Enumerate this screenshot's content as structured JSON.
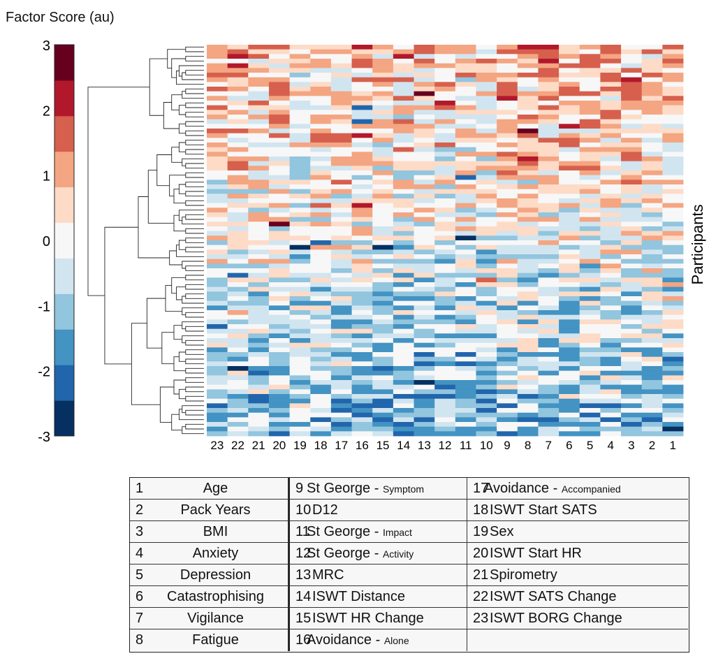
{
  "chart_data": {
    "type": "heatmap",
    "colorbar_title": "Factor Score (au)",
    "colorbar_ticks": [
      "3",
      "2",
      "1",
      "0",
      "-1",
      "-2",
      "-3"
    ],
    "colorbar_range": [
      -3,
      3
    ],
    "colorbar_colors": [
      "#053061",
      "#2166ac",
      "#4393c3",
      "#92c5de",
      "#d1e5f0",
      "#f7f7f7",
      "#fddbc7",
      "#f4a582",
      "#d6604d",
      "#b2182b",
      "#67001f"
    ],
    "ylabel": "Participants",
    "columns": [
      "23",
      "22",
      "21",
      "20",
      "19",
      "18",
      "17",
      "16",
      "15",
      "14",
      "13",
      "12",
      "11",
      "10",
      "9",
      "8",
      "7",
      "6",
      "5",
      "4",
      "3",
      "2",
      "1"
    ],
    "n_rows": 84,
    "row_dendrogram": true
  },
  "legend": {
    "columns": [
      [
        {
          "num": "1",
          "name": "Age",
          "desc": ""
        },
        {
          "num": "2",
          "name": "Pack Years",
          "desc": ""
        },
        {
          "num": "3",
          "name": "BMI",
          "desc": ""
        },
        {
          "num": "4",
          "name": "Anxiety",
          "desc": ""
        },
        {
          "num": "5",
          "name": "Depression",
          "desc": ""
        },
        {
          "num": "6",
          "name": "Catastrophising",
          "desc": ""
        },
        {
          "num": "7",
          "name": "Vigilance",
          "desc": ""
        },
        {
          "num": "8",
          "name": "Fatigue",
          "desc": ""
        }
      ],
      [
        {
          "num": "9",
          "name": "St George - ",
          "desc": "Symptom"
        },
        {
          "num": "10",
          "name": "D12",
          "desc": ""
        },
        {
          "num": "11",
          "name": "St George - ",
          "desc": "Impact"
        },
        {
          "num": "12",
          "name": "St George - ",
          "desc": "Activity"
        },
        {
          "num": "13",
          "name": "MRC",
          "desc": ""
        },
        {
          "num": "14",
          "name": "ISWT Distance",
          "desc": ""
        },
        {
          "num": "15",
          "name": "ISWT HR Change",
          "desc": ""
        },
        {
          "num": "16",
          "name": "Avoidance - ",
          "desc": "Alone"
        }
      ],
      [
        {
          "num": "17",
          "name": "Avoidance - ",
          "desc": "Accompanied"
        },
        {
          "num": "18",
          "name": "ISWT Start SATS",
          "desc": ""
        },
        {
          "num": "19",
          "name": "Sex",
          "desc": ""
        },
        {
          "num": "20",
          "name": "ISWT Start HR",
          "desc": ""
        },
        {
          "num": "21",
          "name": "Spirometry",
          "desc": ""
        },
        {
          "num": "22",
          "name": "ISWT SATS Change",
          "desc": ""
        },
        {
          "num": "23",
          "name": "ISWT BORG Change",
          "desc": ""
        },
        {
          "num": "",
          "name": "",
          "desc": ""
        }
      ]
    ]
  }
}
